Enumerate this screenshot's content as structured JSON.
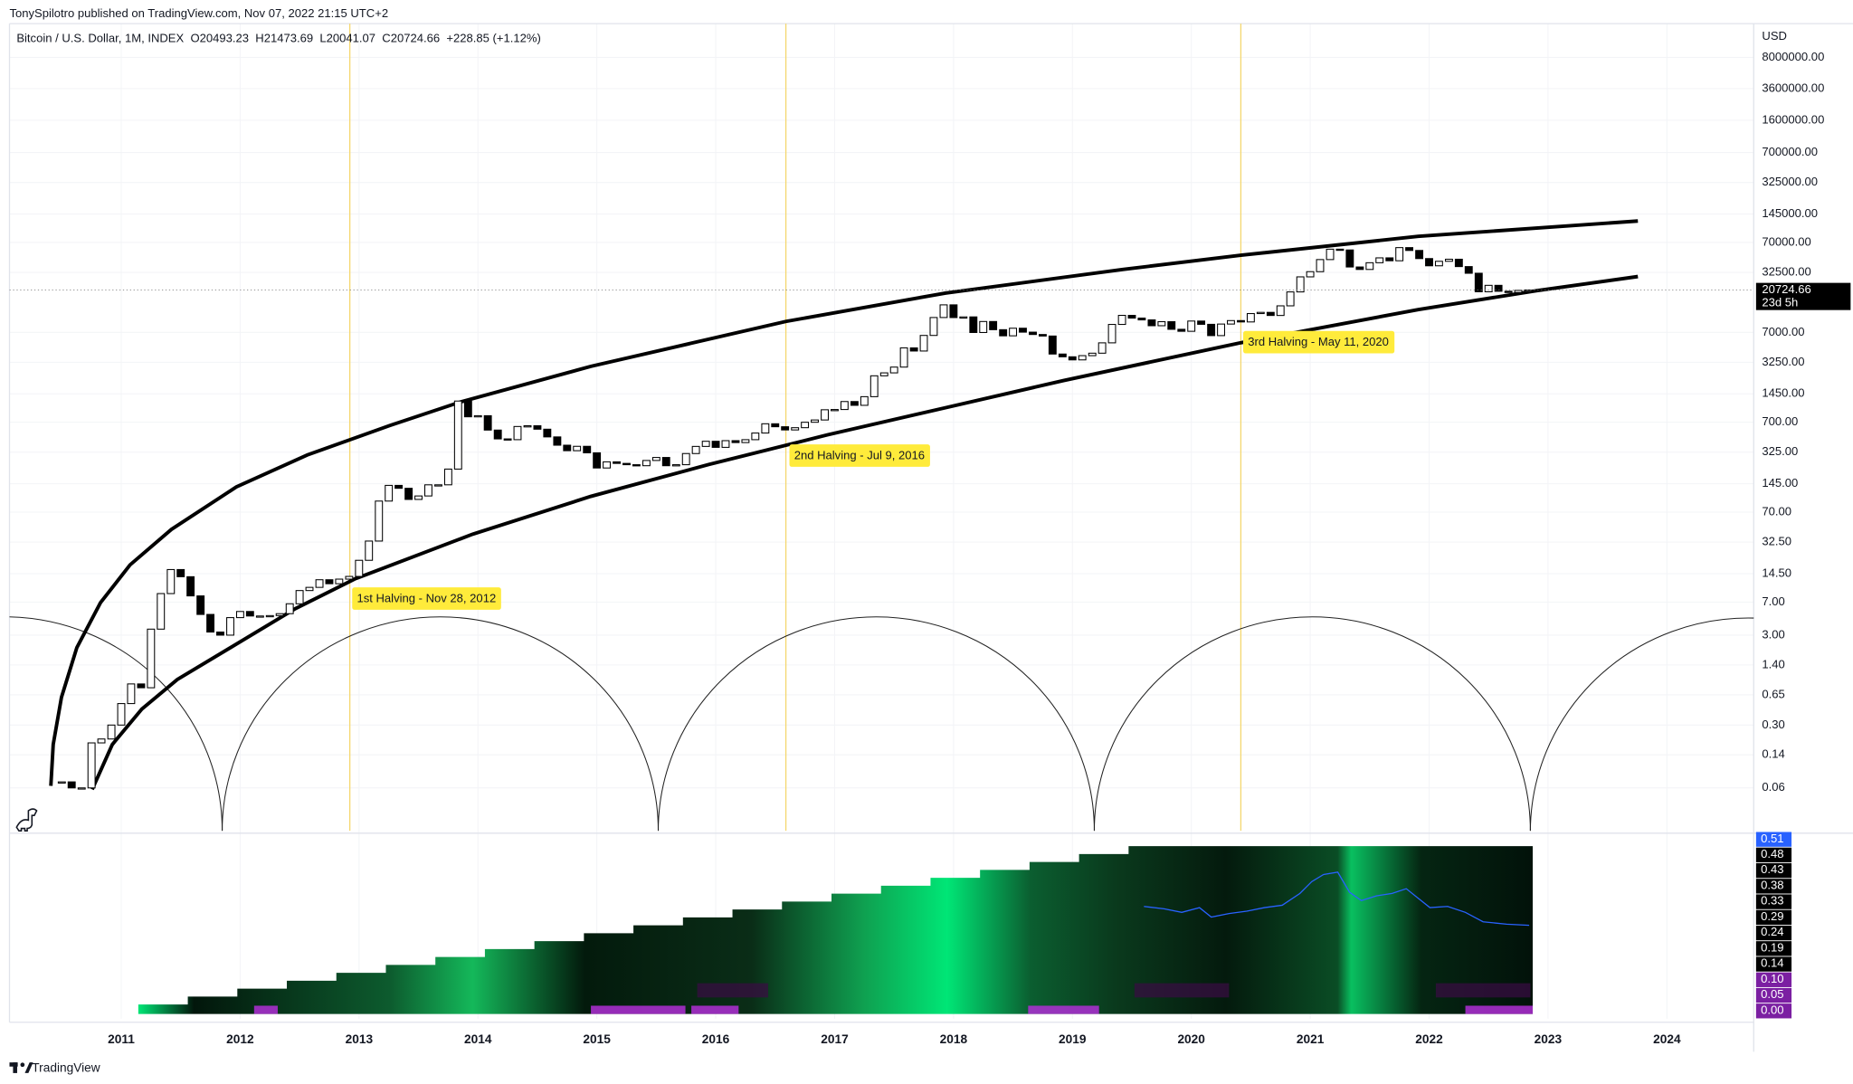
{
  "chart_data": {
    "type": "candlestick",
    "byline": "TonySpilotro published on TradingView.com, Nov 07, 2022 21:15 UTC+2",
    "title": "Bitcoin / U.S. Dollar, 1M, INDEX  O20493.23  H21473.69  L20041.07  C20724.66  +228.85 (+1.12%)",
    "y_unit": "USD",
    "log_scale": true,
    "grid": true,
    "up_color": "#ffffff",
    "down_color": "#000000",
    "x": [
      2010.5,
      2010.583,
      2010.667,
      2010.75,
      2010.833,
      2010.917,
      2011,
      2011.083,
      2011.167,
      2011.25,
      2011.333,
      2011.417,
      2011.5,
      2011.583,
      2011.667,
      2011.75,
      2011.833,
      2011.917,
      2012,
      2012.083,
      2012.167,
      2012.25,
      2012.333,
      2012.417,
      2012.5,
      2012.583,
      2012.667,
      2012.75,
      2012.833,
      2012.917,
      2013,
      2013.083,
      2013.167,
      2013.25,
      2013.333,
      2013.417,
      2013.5,
      2013.583,
      2013.667,
      2013.75,
      2013.833,
      2013.917,
      2014,
      2014.083,
      2014.167,
      2014.25,
      2014.333,
      2014.417,
      2014.5,
      2014.583,
      2014.667,
      2014.75,
      2014.833,
      2014.917,
      2015,
      2015.083,
      2015.167,
      2015.25,
      2015.333,
      2015.417,
      2015.5,
      2015.583,
      2015.667,
      2015.75,
      2015.833,
      2015.917,
      2016,
      2016.083,
      2016.167,
      2016.25,
      2016.333,
      2016.417,
      2016.5,
      2016.583,
      2016.667,
      2016.75,
      2016.833,
      2016.917,
      2017,
      2017.083,
      2017.167,
      2017.25,
      2017.333,
      2017.417,
      2017.5,
      2017.583,
      2017.667,
      2017.75,
      2017.833,
      2017.917,
      2018,
      2018.083,
      2018.167,
      2018.25,
      2018.333,
      2018.417,
      2018.5,
      2018.583,
      2018.667,
      2018.75,
      2018.833,
      2018.917,
      2019,
      2019.083,
      2019.167,
      2019.25,
      2019.333,
      2019.417,
      2019.5,
      2019.583,
      2019.667,
      2019.75,
      2019.833,
      2019.917,
      2020,
      2020.083,
      2020.167,
      2020.25,
      2020.333,
      2020.417,
      2020.5,
      2020.583,
      2020.667,
      2020.75,
      2020.833,
      2020.917,
      2021,
      2021.083,
      2021.167,
      2021.25,
      2021.333,
      2021.417,
      2021.5,
      2021.583,
      2021.667,
      2021.75,
      2021.833,
      2021.917,
      2022,
      2022.083,
      2022.167,
      2022.25,
      2022.333,
      2022.417,
      2022.5,
      2022.583,
      2022.667,
      2022.75,
      2022.833
    ],
    "values": [
      0.07,
      0.06,
      0.06,
      0.19,
      0.21,
      0.3,
      0.52,
      0.86,
      0.78,
      3.5,
      8.7,
      16.1,
      13.4,
      8.2,
      5.1,
      3.25,
      3,
      4.7,
      5.5,
      4.9,
      4.9,
      4.95,
      5.2,
      6.7,
      9.4,
      10.2,
      12.4,
      11.2,
      12.6,
      13.5,
      20.4,
      33.4,
      93,
      139,
      129,
      97,
      106,
      141,
      141,
      211,
      1205,
      805,
      828,
      573,
      457,
      448,
      628,
      640,
      586,
      481,
      389,
      338,
      378,
      320,
      217,
      254,
      244,
      236,
      230,
      263,
      284,
      230,
      236,
      314,
      377,
      430,
      368,
      437,
      416,
      448,
      531,
      673,
      624,
      575,
      609,
      700,
      742,
      964,
      970,
      1190,
      1080,
      1348,
      2300,
      2480,
      2875,
      4703,
      4339,
      6468,
      10233,
      14156,
      10221,
      10397,
      6973,
      9240,
      7494,
      6404,
      7780,
      7037,
      6625,
      6371,
      4017,
      3742,
      3457,
      3854,
      4105,
      5350,
      8574,
      10817,
      10085,
      9630,
      8293,
      9199,
      7569,
      7193,
      9350,
      8599,
      6438,
      8658,
      9461,
      9137,
      11323,
      11680,
      10785,
      13805,
      19713,
      28990,
      33114,
      45137,
      58918,
      57750,
      37332,
      35040,
      41626,
      47166,
      43790,
      61318,
      57005,
      46306,
      38483,
      43193,
      45538,
      37714,
      31792,
      19784,
      23336,
      20050,
      19431,
      20495,
      20724.66
    ],
    "xlim": [
      2010.06,
      2024.73
    ],
    "xticks": [
      2011,
      2012,
      2013,
      2014,
      2015,
      2016,
      2017,
      2018,
      2019,
      2020,
      2021,
      2022,
      2023,
      2024
    ],
    "ylim": [
      0.02,
      19000000
    ],
    "yticks": [
      {
        "value": 8000000,
        "label": "8000000.00"
      },
      {
        "value": 3600000,
        "label": "3600000.00"
      },
      {
        "value": 1600000,
        "label": "1600000.00"
      },
      {
        "value": 700000,
        "label": "700000.00"
      },
      {
        "value": 325000,
        "label": "325000.00"
      },
      {
        "value": 145000,
        "label": "145000.00"
      },
      {
        "value": 70000,
        "label": "70000.00"
      },
      {
        "value": 32500,
        "label": "32500.00"
      },
      {
        "value": 7000,
        "label": "7000.00"
      },
      {
        "value": 3250,
        "label": "3250.00"
      },
      {
        "value": 1450,
        "label": "1450.00"
      },
      {
        "value": 700,
        "label": "700.00"
      },
      {
        "value": 325,
        "label": "325.00"
      },
      {
        "value": 145,
        "label": "145.00"
      },
      {
        "value": 70,
        "label": "70.00"
      },
      {
        "value": 32.5,
        "label": "32.50"
      },
      {
        "value": 14.5,
        "label": "14.50"
      },
      {
        "value": 7,
        "label": "7.00"
      },
      {
        "value": 3,
        "label": "3.00"
      },
      {
        "value": 1.4,
        "label": "1.40"
      },
      {
        "value": 0.65,
        "label": "0.65"
      },
      {
        "value": 0.3,
        "label": "0.30"
      },
      {
        "value": 0.14,
        "label": "0.14"
      },
      {
        "value": 0.06,
        "label": "0.06"
      }
    ],
    "last_price": 20724.66,
    "countdown": "23d 5h",
    "annotations": [
      "1st Halving - Nov 28, 2012",
      "2nd Halving - Jul 9, 2016",
      "3rd Halving - May 11, 2020"
    ],
    "indicator_scale": [
      {
        "value": 0.51,
        "label": "0.51"
      },
      {
        "value": 0.48,
        "label": "0.48"
      },
      {
        "value": 0.43,
        "label": "0.43"
      },
      {
        "value": 0.38,
        "label": "0.38"
      },
      {
        "value": 0.33,
        "label": "0.33"
      },
      {
        "value": 0.29,
        "label": "0.29"
      },
      {
        "value": 0.24,
        "label": "0.24"
      },
      {
        "value": 0.19,
        "label": "0.19"
      },
      {
        "value": 0.14,
        "label": "0.14"
      },
      {
        "value": 0.1,
        "label": "0.10"
      },
      {
        "value": 0.05,
        "label": "0.05"
      },
      {
        "value": 0,
        "label": "0.00"
      }
    ]
  },
  "footer": "TradingView"
}
